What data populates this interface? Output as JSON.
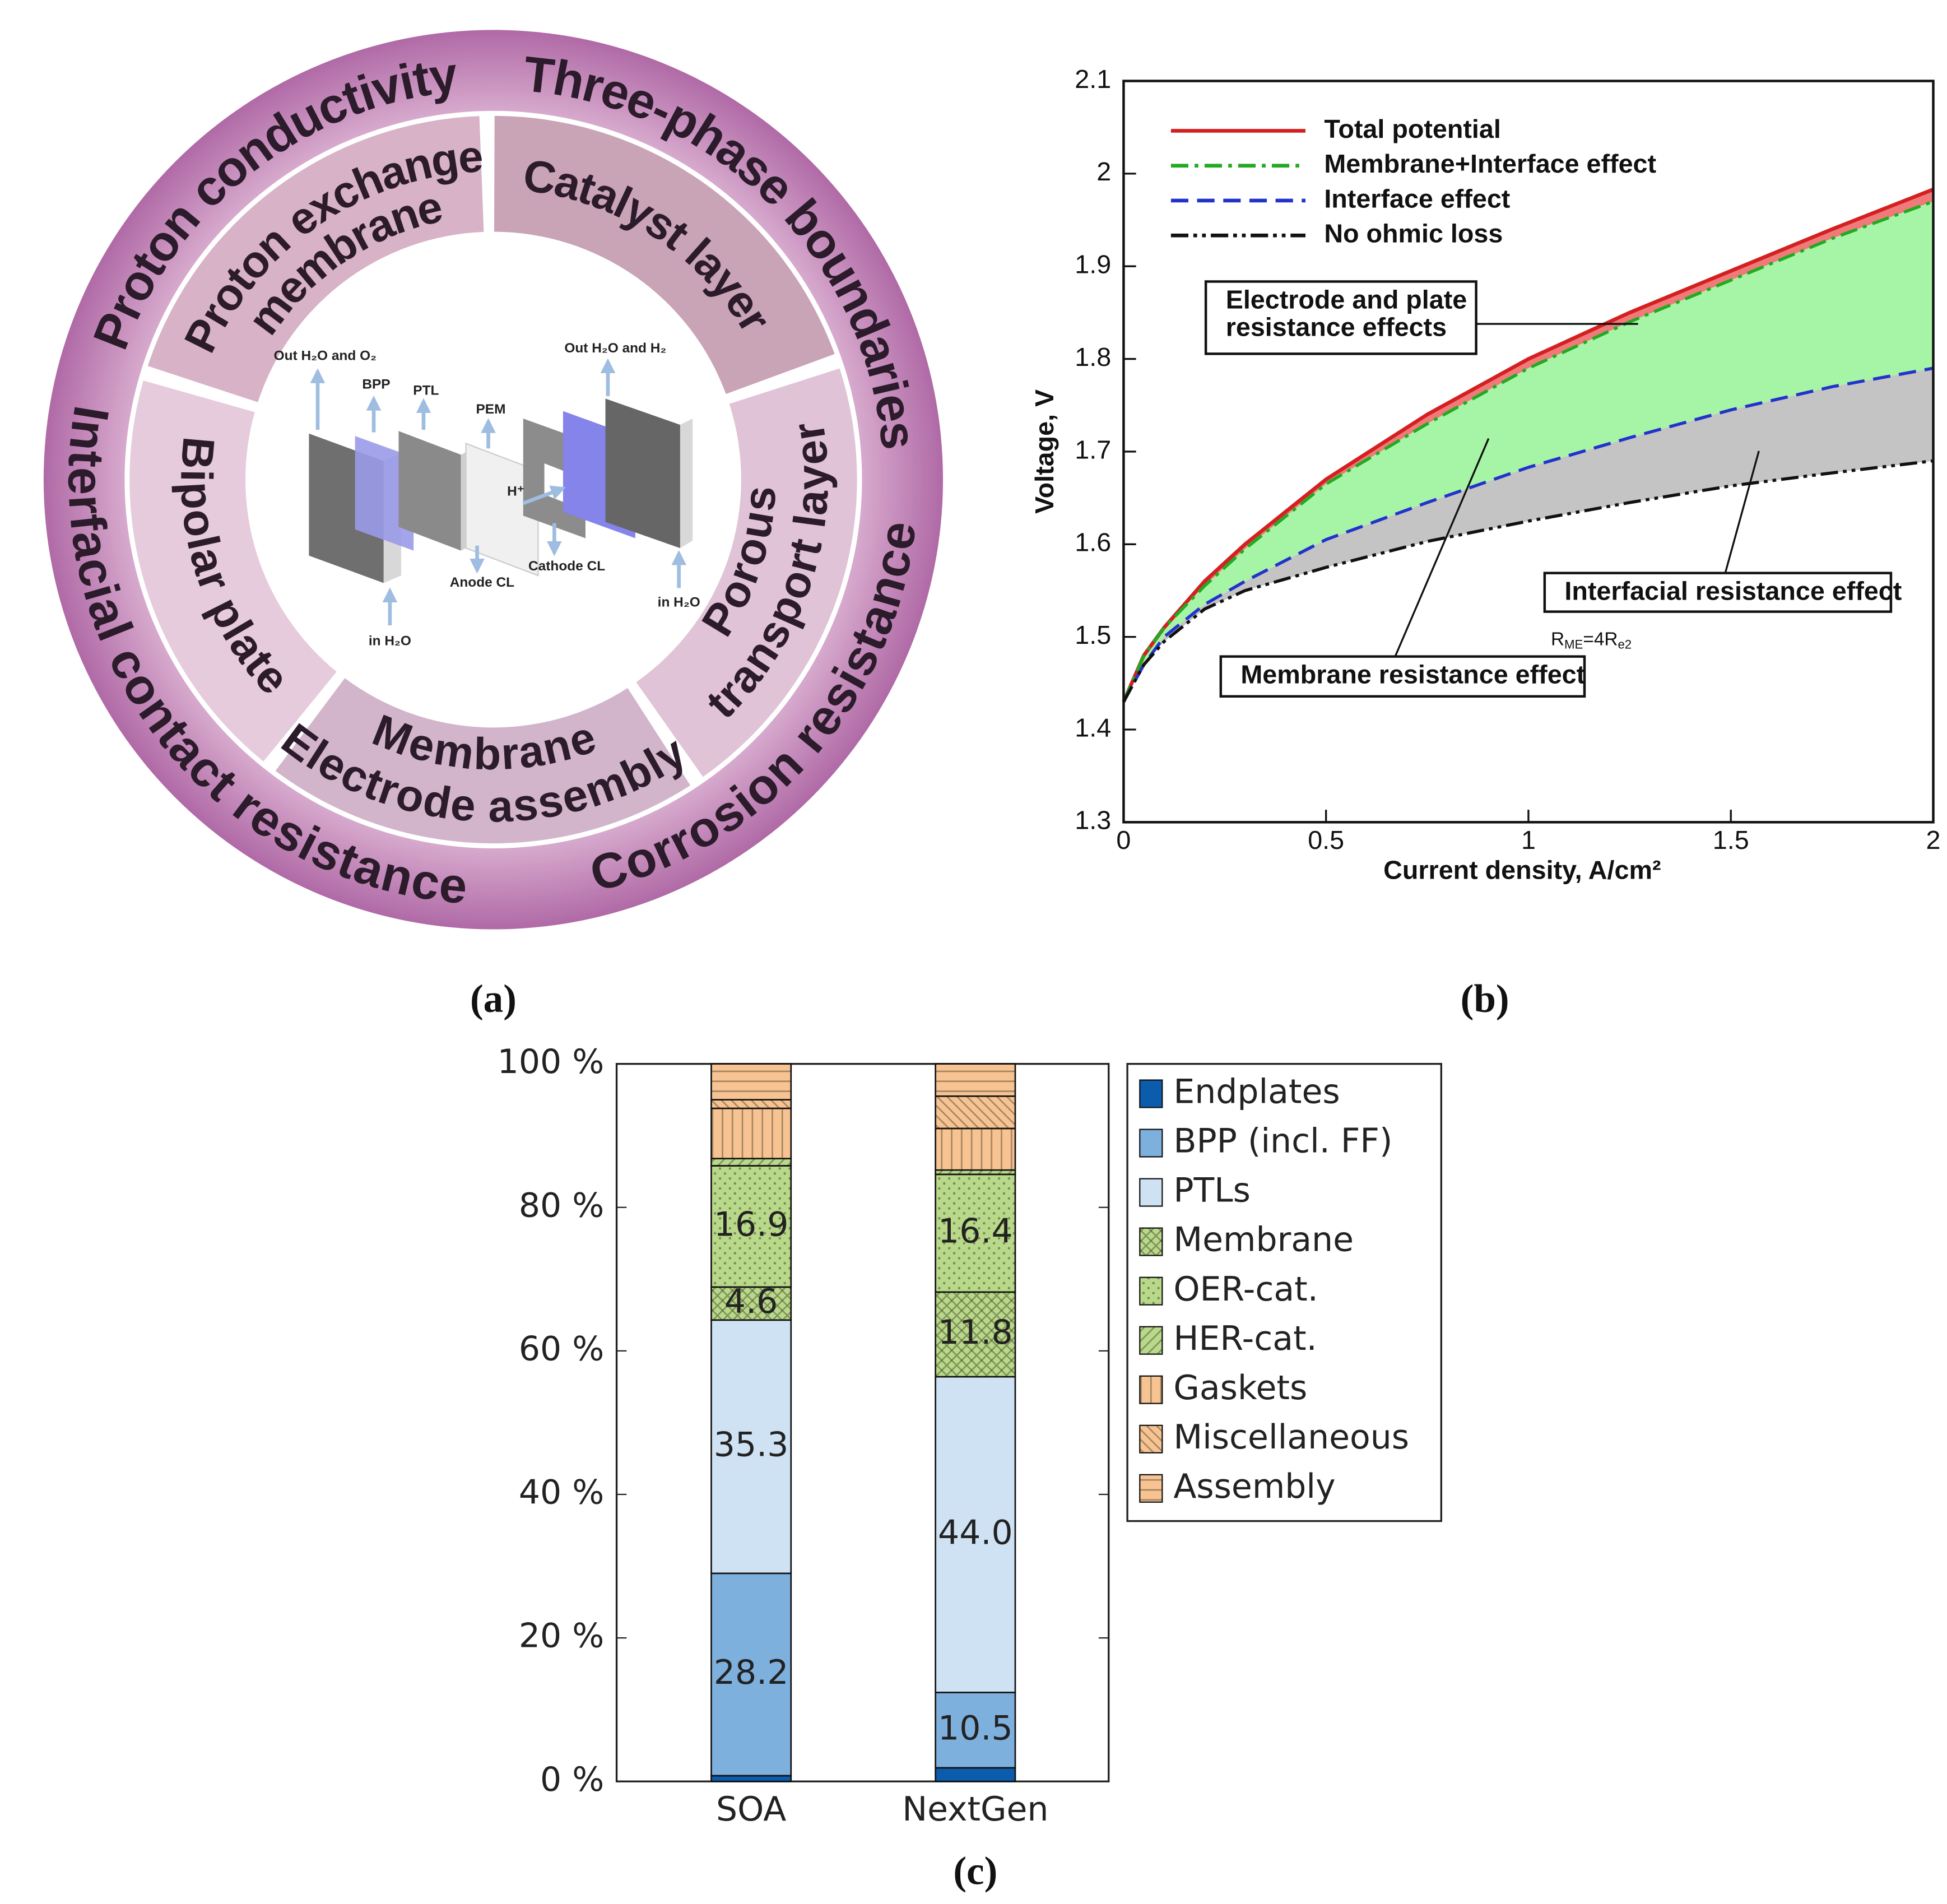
{
  "diagram": {
    "outer_ring": [
      "Proton conductivity",
      "Three-phase boundaries",
      "Corrosion resistance",
      "Interfacial contact resistance"
    ],
    "segments": [
      [
        "Proton exchange",
        "membrane"
      ],
      [
        "Catalyst layer"
      ],
      [
        "Porous",
        "transport layer"
      ],
      [
        "Membrane",
        "Electrode assembly"
      ],
      [
        "Bipolar plate"
      ]
    ],
    "labels": [
      "Out H₂O and O₂",
      "BPP",
      "PTL",
      "PEM",
      "Out H₂O and H₂",
      "H⁺",
      "Anode CL",
      "Cathode CL",
      "in H₂O",
      "in H₂O"
    ]
  },
  "chart_data": [
    {
      "type": "line",
      "xlabel": "Current density, A/cm²",
      "ylabel": "Voltage, V",
      "x": [
        0,
        0.05,
        0.1,
        0.2,
        0.3,
        0.5,
        0.75,
        1,
        1.25,
        1.5,
        1.75,
        2
      ],
      "series": [
        {
          "name": "Total potential",
          "color": "#d42020",
          "dash": "solid",
          "values": [
            1.43,
            1.48,
            1.51,
            1.56,
            1.6,
            1.67,
            1.74,
            1.8,
            1.85,
            1.895,
            1.94,
            1.983
          ]
        },
        {
          "name": "Membrane+Interface effect",
          "color": "#22aa22",
          "dash": "dashdot",
          "values": [
            1.43,
            1.48,
            1.51,
            1.555,
            1.595,
            1.665,
            1.73,
            1.79,
            1.84,
            1.885,
            1.93,
            1.97
          ]
        },
        {
          "name": "Interface effect",
          "color": "#2233cc",
          "dash": "dashed",
          "values": [
            1.43,
            1.47,
            1.5,
            1.535,
            1.56,
            1.605,
            1.645,
            1.683,
            1.715,
            1.745,
            1.77,
            1.79
          ]
        },
        {
          "name": "No ohmic loss",
          "color": "#111111",
          "dash": "dashdotdot",
          "values": [
            1.43,
            1.47,
            1.495,
            1.53,
            1.55,
            1.575,
            1.603,
            1.625,
            1.645,
            1.663,
            1.677,
            1.69
          ]
        }
      ],
      "band_fills": [
        "#f07a7a",
        "#a6f5a6",
        "#c4c4c4"
      ],
      "xlim": [
        0,
        2
      ],
      "ylim": [
        1.3,
        2.1
      ],
      "xticks": [
        0,
        0.5,
        1,
        1.5,
        2
      ],
      "yticks": [
        1.3,
        1.4,
        1.5,
        1.6,
        1.7,
        1.8,
        1.9,
        2,
        2.1
      ],
      "legend": "upper left",
      "annotations": [
        [
          "Electrode and plate",
          "resistance effects"
        ],
        [
          "Interfacial resistance effect"
        ],
        [
          "Membrane resistance effect"
        ],
        [
          "R",
          "ME",
          "=4R",
          "e2"
        ]
      ]
    },
    {
      "type": "bar",
      "stacked": true,
      "categories": [
        "SOA",
        "NextGen"
      ],
      "series": [
        {
          "name": "Endplates",
          "color": "#0b5cad",
          "hatch": "none",
          "values": [
            0.8,
            1.9
          ],
          "value_labels": [
            null,
            null
          ]
        },
        {
          "name": "BPP (incl.  FF)",
          "color": "#7eb0de",
          "hatch": "none",
          "values": [
            28.2,
            10.5
          ],
          "value_labels": [
            "28.2",
            "10.5"
          ]
        },
        {
          "name": "PTLs",
          "color": "#cfe2f4",
          "hatch": "none",
          "values": [
            35.3,
            44.0
          ],
          "value_labels": [
            "35.3",
            "44.0"
          ]
        },
        {
          "name": "Membrane",
          "color": "#b8d98a",
          "hatch": "crosshatch",
          "values": [
            4.6,
            11.8
          ],
          "value_labels": [
            "4.6",
            "11.8"
          ]
        },
        {
          "name": "OER-cat.",
          "color": "#b8d98a",
          "hatch": "dots",
          "values": [
            16.9,
            16.4
          ],
          "value_labels": [
            "16.9",
            "16.4"
          ]
        },
        {
          "name": "HER-cat.",
          "color": "#b8d98a",
          "hatch": "ne-lines",
          "values": [
            1.0,
            0.6
          ],
          "value_labels": [
            null,
            null
          ]
        },
        {
          "name": "Gaskets",
          "color": "#f8c393",
          "hatch": "vertical",
          "values": [
            7.0,
            5.8
          ],
          "value_labels": [
            null,
            null
          ]
        },
        {
          "name": "Miscellaneous",
          "color": "#f8c393",
          "hatch": "nw-lines",
          "values": [
            1.2,
            4.5
          ],
          "value_labels": [
            null,
            null
          ]
        },
        {
          "name": "Assembly",
          "color": "#f8c393",
          "hatch": "horizontal",
          "values": [
            5.0,
            4.5
          ],
          "value_labels": [
            null,
            null
          ]
        }
      ],
      "ylim": [
        0,
        100
      ],
      "yticks": [
        {
          "value": 0,
          "label": "0 %"
        },
        {
          "value": 20,
          "label": "20 %"
        },
        {
          "value": 40,
          "label": "40 %"
        },
        {
          "value": 60,
          "label": "60 %"
        },
        {
          "value": 80,
          "label": "80 %"
        },
        {
          "value": 100,
          "label": "100 %"
        }
      ],
      "legend": "right"
    }
  ],
  "captions": [
    "(a)",
    "(b)",
    "(c)"
  ]
}
